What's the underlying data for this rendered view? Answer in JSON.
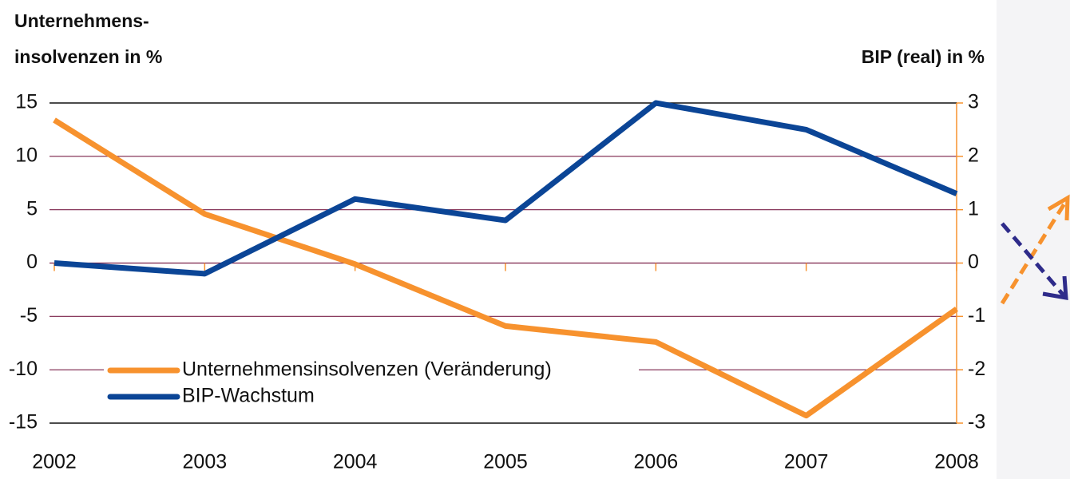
{
  "chart_data": {
    "type": "line",
    "y_label": [
      "Unternehmens-",
      "insolvenzen in %"
    ],
    "y2_label": "BIP (real) in %",
    "categories": [
      "2002",
      "2003",
      "2004",
      "2005",
      "2006",
      "2007",
      "2008"
    ],
    "series": [
      {
        "name": "Unternehmensinsolvenzen (Veränderung)",
        "color": "#f7922e",
        "values": [
          13.4,
          4.6,
          -0.1,
          -5.9,
          -7.4,
          -14.3,
          -4.3
        ]
      },
      {
        "name": "BIP-Wachstum",
        "color": "#0b4596",
        "axis": "y2",
        "values": [
          0.0,
          -0.2,
          1.2,
          0.8,
          3.0,
          2.5,
          1.3
        ]
      }
    ],
    "ylim": [
      -15,
      15
    ],
    "yticks": [
      -15,
      -10,
      -5,
      0,
      5,
      10,
      15
    ],
    "y2lim": [
      -3,
      3
    ],
    "y2ticks": [
      -3,
      -2,
      -1,
      0,
      1,
      2,
      3
    ],
    "grid": true,
    "legend": "lower left"
  }
}
